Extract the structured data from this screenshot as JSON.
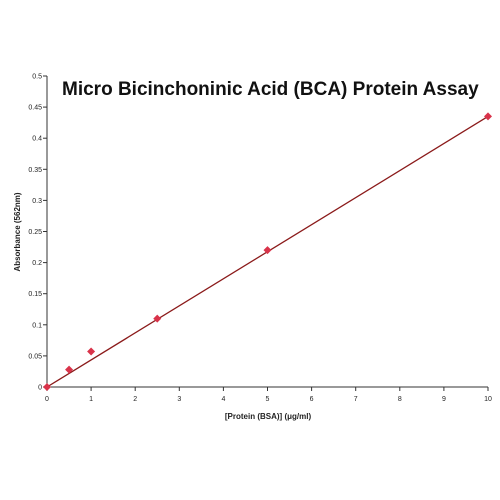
{
  "chart_data": {
    "type": "scatter",
    "title": "Micro Bicinchoninic Acid (BCA) Protein Assay",
    "xlabel": "[Protein (BSA)] (μg/ml)",
    "ylabel": "Absorbance (562nm)",
    "xlim": [
      0,
      10
    ],
    "ylim": [
      0,
      0.5
    ],
    "x_ticks": [
      "0",
      "1",
      "2",
      "3",
      "4",
      "5",
      "6",
      "7",
      "8",
      "9",
      "10"
    ],
    "y_ticks": [
      "0",
      "0.05",
      "0.1",
      "0.15",
      "0.2",
      "0.25",
      "0.3",
      "0.35",
      "0.4",
      "0.45",
      "0.5"
    ],
    "grid": false,
    "series": [
      {
        "x": [
          0,
          0.5,
          1,
          2.5,
          5,
          10
        ],
        "y": [
          0,
          0.028,
          0.057,
          0.11,
          0.22,
          0.435
        ],
        "marker": "diamond",
        "color": "#d9334a"
      }
    ],
    "trendline": {
      "x": [
        0,
        10
      ],
      "y": [
        0,
        0.435
      ],
      "color": "#8b1a1a"
    }
  }
}
